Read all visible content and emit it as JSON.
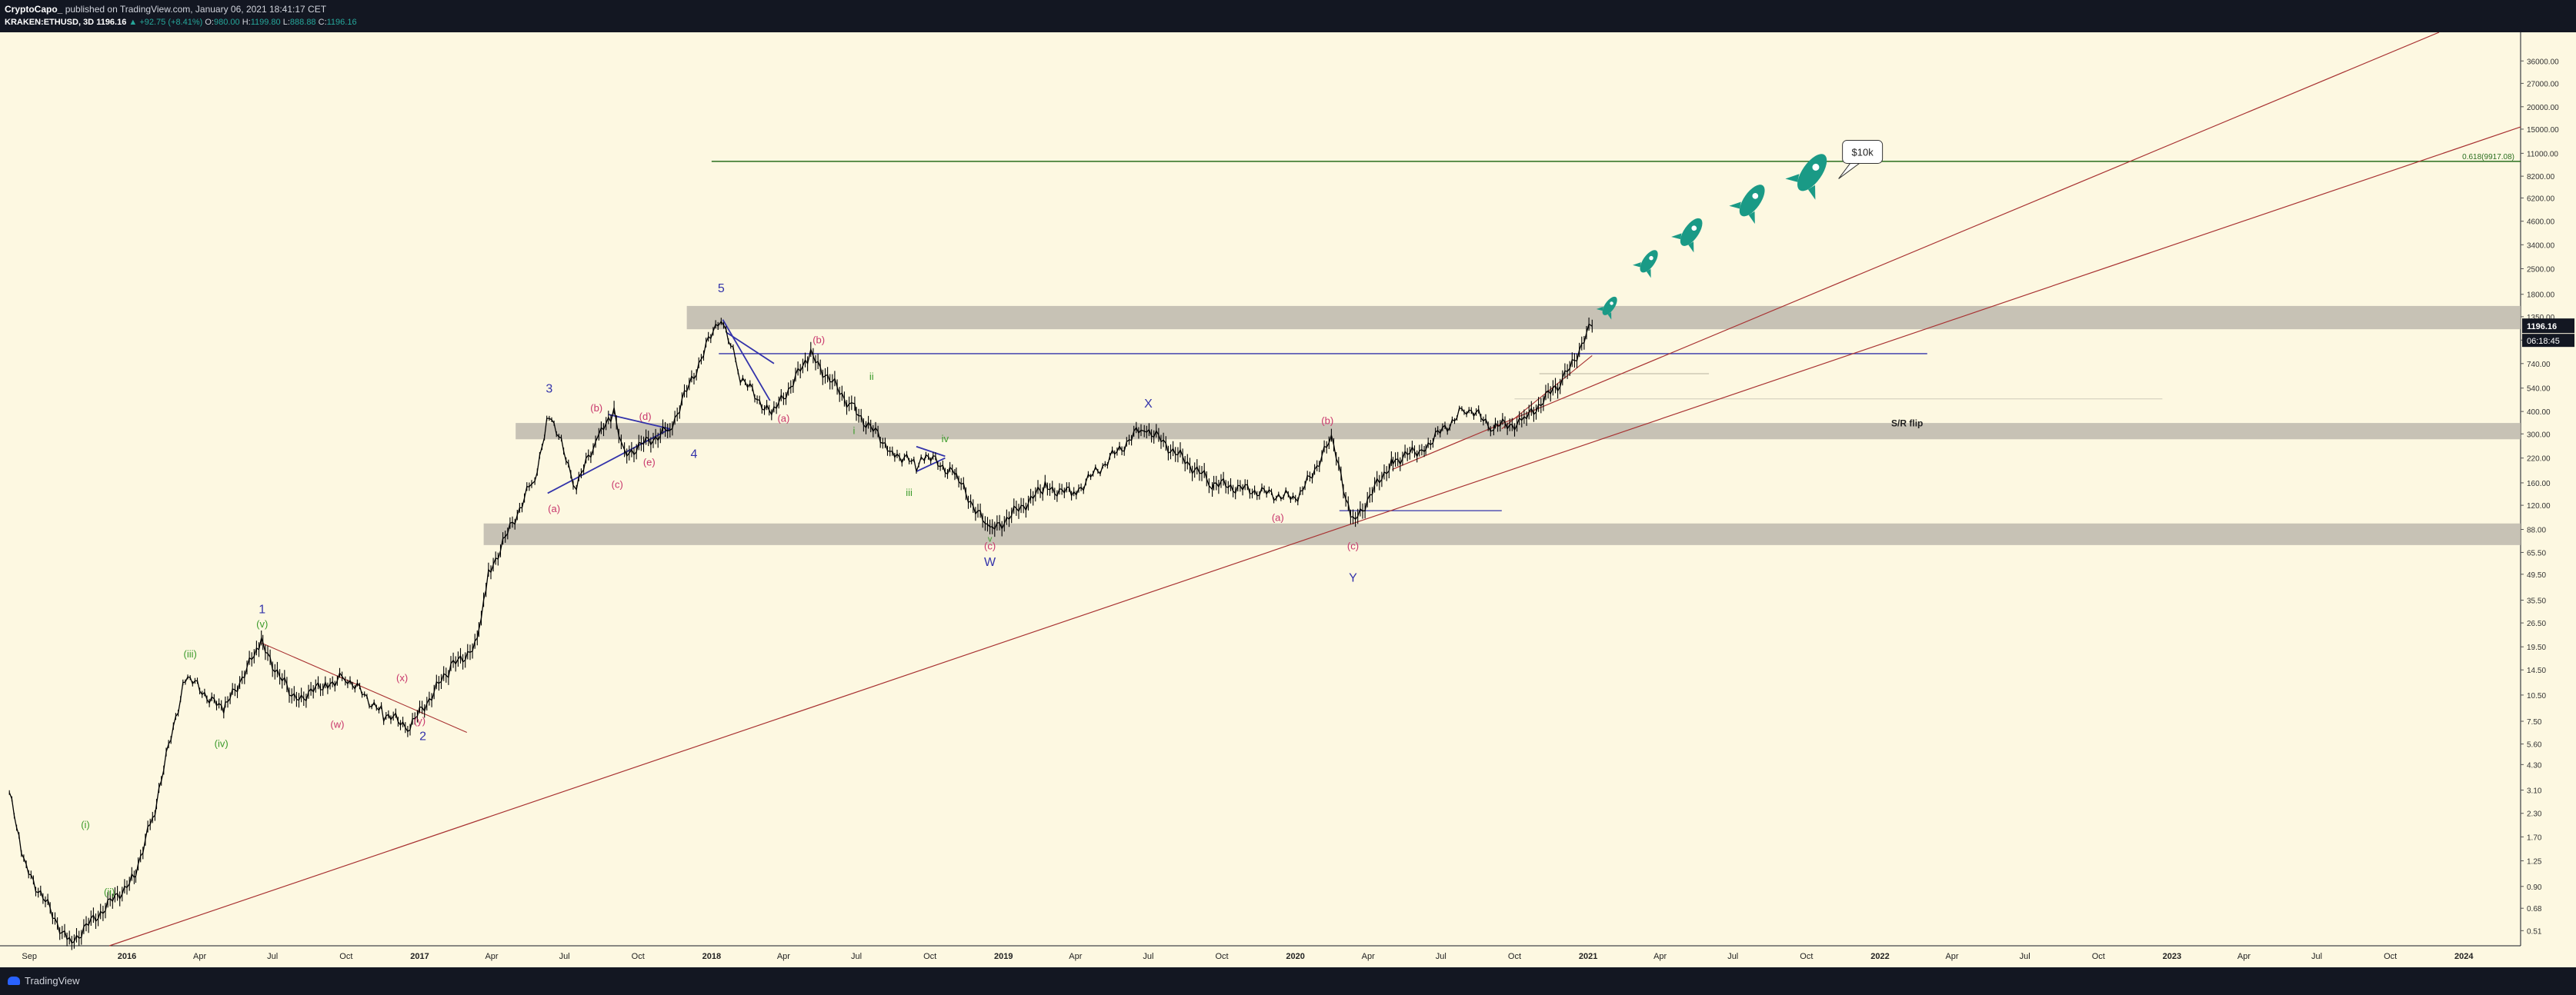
{
  "header": {
    "author": "CryptoCapo_",
    "published": "published on TradingView.com, January 06, 2021 18:41:17 CET",
    "symbol": "KRAKEN:ETHUSD, 3D",
    "last": "1196.16",
    "change": "▲ +92.75 (+8.41%)",
    "ohlc": {
      "o": "980.00",
      "h": "1199.80",
      "l": "888.88",
      "c": "1196.16"
    }
  },
  "footer": {
    "brand": "TradingView"
  },
  "colors": {
    "background": "#fdf8e1",
    "candle": "#000000",
    "wave_primary": "#3333aa",
    "wave_sub": "#c8356b",
    "wave_minor": "#3a9a2a",
    "trendline": "#a83232",
    "fib_line": "#2a6e1e",
    "zone": "#bdb9ad",
    "rocket": "#1a9a86"
  },
  "chart_data": {
    "type": "line",
    "title": "",
    "scale": "log",
    "ylim": [
      0.42,
      52000
    ],
    "x_ticks": [
      "Sep",
      "2016",
      "Apr",
      "Jul",
      "Oct",
      "2017",
      "Apr",
      "Jul",
      "Oct",
      "2018",
      "Apr",
      "Jul",
      "Oct",
      "2019",
      "Apr",
      "Jul",
      "Oct",
      "2020",
      "Apr",
      "Jul",
      "Oct",
      "2021",
      "Apr",
      "Jul",
      "Oct",
      "2022",
      "Apr",
      "Jul",
      "Oct",
      "2023",
      "Apr",
      "Jul",
      "Oct",
      "2024"
    ],
    "y_ticks": [
      0.51,
      0.68,
      0.9,
      1.25,
      1.7,
      2.3,
      3.1,
      4.3,
      5.6,
      7.5,
      10.5,
      14.5,
      19.5,
      26.5,
      35.5,
      49.5,
      65.5,
      88,
      120,
      160,
      220,
      300,
      400,
      540,
      740,
      1000,
      1350,
      1800,
      2500,
      3400,
      4600,
      6200,
      8200,
      11000,
      15000,
      20000,
      27000,
      36000,
      50000
    ],
    "y_tick_labels": [
      "0.51",
      "0.68",
      "0.90",
      "1.25",
      "1.70",
      "2.30",
      "3.10",
      "4.30",
      "5.60",
      "7.50",
      "10.50",
      "14.50",
      "19.50",
      "26.50",
      "35.50",
      "49.50",
      "65.50",
      "88.00",
      "120.00",
      "160.00",
      "220.00",
      "300.00",
      "400.00",
      "540.00",
      "740.00",
      "1000.00",
      "1350.00",
      "1800.00",
      "2500.00",
      "3400.00",
      "4600.00",
      "6200.00",
      "8200.00",
      "11000.00",
      "15000.00",
      "20000.00",
      "27000.00",
      "36000.00",
      "50000.00"
    ],
    "series": [
      {
        "x": [
          "2015-08-07",
          "2015-08-25",
          "2015-10-21",
          "2016-01-10",
          "2016-02-05",
          "2016-03-14",
          "2016-05-01",
          "2016-06-17",
          "2016-07-28",
          "2016-09-05",
          "2016-09-30",
          "2016-11-17",
          "2016-12-20",
          "2017-02-09",
          "2017-03-14",
          "2017-03-28",
          "2017-05-25",
          "2017-06-12",
          "2017-07-16",
          "2017-08-13",
          "2017-09-01",
          "2017-09-14",
          "2017-11-10",
          "2018-01-13",
          "2018-02-06",
          "2018-03-17",
          "2018-05-05",
          "2018-06-29",
          "2018-08-15",
          "2018-09-14",
          "2018-09-24",
          "2018-11-01",
          "2018-12-15",
          "2019-02-22",
          "2019-03-30",
          "2019-06-26",
          "2019-09-19",
          "2020-01-04",
          "2020-02-15",
          "2020-03-13",
          "2020-04-30",
          "2020-06-10",
          "2020-08-02",
          "2020-09-05",
          "2020-10-10",
          "2020-12-03",
          "2021-01-06"
        ],
        "values": [
          3.0,
          1.2,
          0.43,
          1.0,
          2.4,
          13.5,
          8.5,
          20.5,
          9.8,
          12.0,
          13.3,
          8.2,
          7.0,
          15.0,
          20.0,
          50.0,
          170,
          400,
          155,
          290,
          385,
          230,
          320,
          1380,
          620,
          380,
          820,
          410,
          240,
          200,
          230,
          180,
          85,
          150,
          140,
          330,
          160,
          130,
          280,
          95,
          210,
          250,
          420,
          330,
          345,
          620,
          1196
        ]
      }
    ],
    "last_price_label": "1196.16",
    "countdown_label": "06:18:45",
    "annotations": {
      "waves_primary": [
        "1",
        "2",
        "3",
        "4",
        "5",
        "X",
        "W",
        "Y"
      ],
      "waves_sub": [
        "(a)",
        "(b)",
        "(c)",
        "(d)",
        "(e)",
        "(a)",
        "(b)",
        "(c)",
        "(a)",
        "(b)",
        "(c)",
        "(w)",
        "(x)",
        "(y)"
      ],
      "waves_minor": [
        "(i)",
        "(ii)",
        "(iii)",
        "(iv)",
        "(v)",
        "i",
        "ii",
        "iii",
        "iv",
        "v"
      ],
      "zone_label": "S/R flip",
      "fib_label": "0.618(9917.08)",
      "callout": "$10k"
    }
  }
}
